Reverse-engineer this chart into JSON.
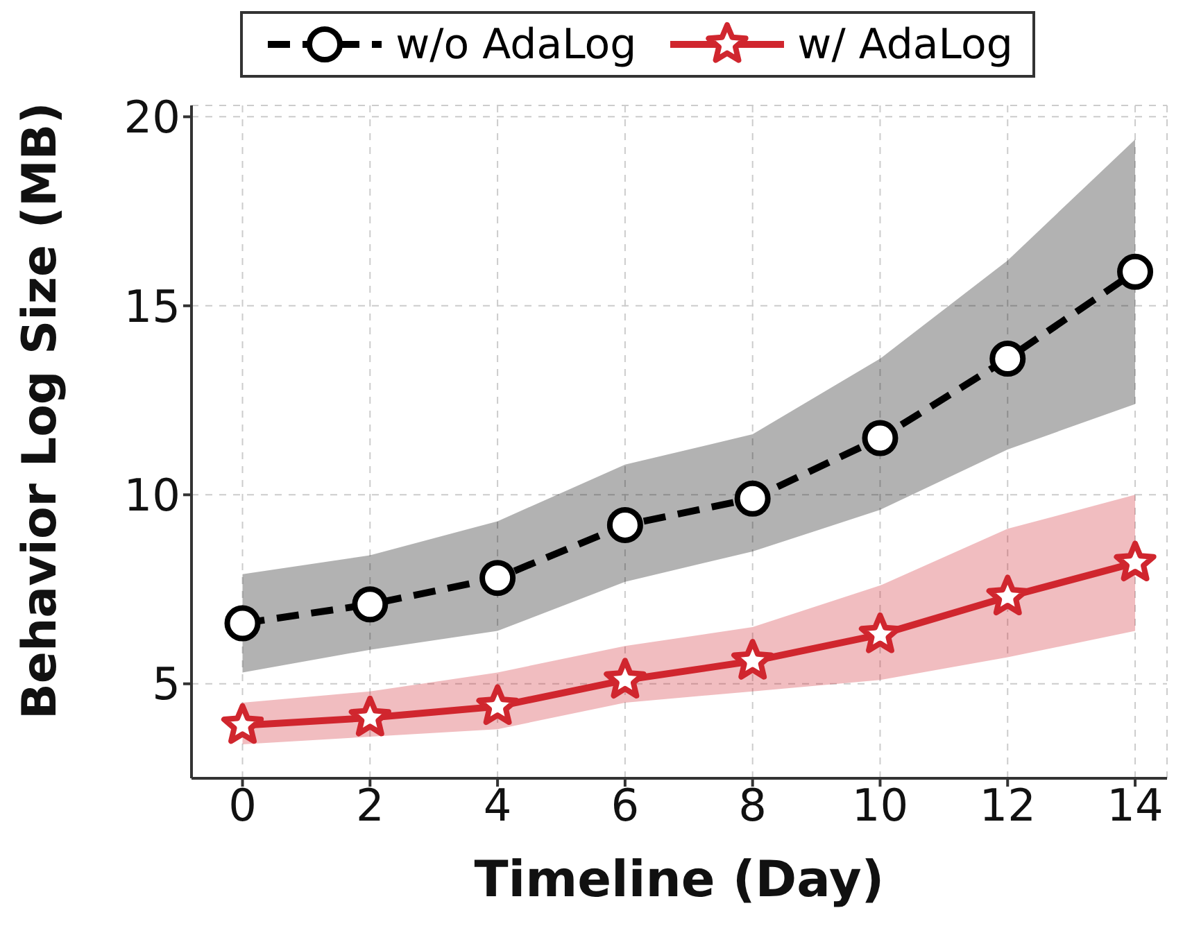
{
  "chart_data": {
    "type": "line",
    "xlabel": "Timeline (Day)",
    "ylabel": "Behavior Log Size (MB)",
    "x": [
      0,
      2,
      4,
      6,
      8,
      10,
      12,
      14
    ],
    "xlim": [
      -0.8,
      14.5
    ],
    "xticks": [
      0,
      2,
      4,
      6,
      8,
      10,
      12,
      14
    ],
    "ylim": [
      2.5,
      20.3
    ],
    "yticks": [
      5,
      10,
      15,
      20
    ],
    "grid": true,
    "legend": "top",
    "series": [
      {
        "name": "w/o AdaLog",
        "color": "#000000",
        "marker": "circle",
        "line_style": "dashed",
        "values": [
          6.6,
          7.1,
          7.8,
          9.2,
          9.9,
          11.5,
          13.6,
          15.9
        ],
        "lower": [
          5.3,
          5.9,
          6.4,
          7.7,
          8.5,
          9.6,
          11.2,
          12.4
        ],
        "upper": [
          7.9,
          8.4,
          9.3,
          10.8,
          11.6,
          13.6,
          16.2,
          19.4
        ]
      },
      {
        "name": "w/ AdaLog",
        "color": "#d0262e",
        "marker": "star",
        "line_style": "solid",
        "values": [
          3.9,
          4.1,
          4.4,
          5.1,
          5.6,
          6.3,
          7.3,
          8.2
        ],
        "lower": [
          3.4,
          3.6,
          3.8,
          4.5,
          4.8,
          5.1,
          5.7,
          6.4
        ],
        "upper": [
          4.5,
          4.8,
          5.3,
          6.0,
          6.5,
          7.6,
          9.1,
          10.0
        ]
      }
    ]
  }
}
